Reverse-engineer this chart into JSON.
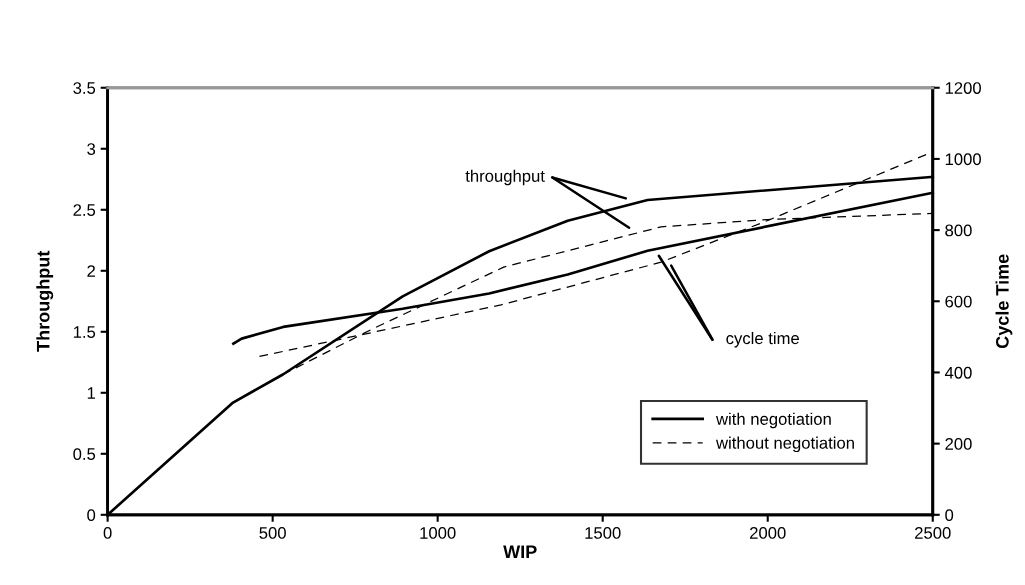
{
  "chart_data": {
    "type": "line",
    "xlabel": "WIP",
    "ylabel": "Throughput",
    "y2label": "Cycle Time",
    "xlim": [
      0,
      2500
    ],
    "xticks": [
      0,
      500,
      1000,
      1500,
      2000,
      2500
    ],
    "ylim": [
      0,
      3.5
    ],
    "yticks": [
      0,
      0.5,
      1,
      1.5,
      2,
      2.5,
      3,
      3.5
    ],
    "y2lim": [
      0,
      1200
    ],
    "y2ticks": [
      0,
      200,
      400,
      600,
      800,
      1000,
      1200
    ],
    "grid": false,
    "legend": "bottom right",
    "marker": "none",
    "series": [
      {
        "name": "with negotiation",
        "color": "#000000",
        "line_style": "solid",
        "x": [
          0,
          380,
          531,
          894,
          1156,
          1394,
          1636,
          2500
        ],
        "values": [
          0,
          0.92,
          1.15,
          1.79,
          2.16,
          2.41,
          2.58,
          2.77
        ]
      },
      {
        "name": "without negotiation",
        "color": "#000000",
        "line_style": "dashed",
        "x": [
          0,
          380,
          531,
          800,
          1200,
          1677,
          2000,
          2500
        ],
        "values": [
          0,
          0.92,
          1.15,
          1.52,
          2.03,
          2.36,
          2.42,
          2.47
        ]
      },
      {
        "color": "#000000",
        "line_style": "solid",
        "axis": "y2",
        "x": [
          381,
          406,
          532,
          894,
          1156,
          1394,
          1636,
          2500
        ],
        "values": [
          481,
          495,
          528,
          579,
          622,
          675,
          742,
          905
        ]
      },
      {
        "color": "#000000",
        "line_style": "dashed",
        "axis": "y2",
        "x": [
          460,
          800,
          1192,
          1677,
          2000,
          2500
        ],
        "values": [
          445,
          512,
          590,
          710,
          827,
          1020
        ]
      }
    ],
    "annotations": [
      "throughput",
      "cycle time"
    ]
  }
}
